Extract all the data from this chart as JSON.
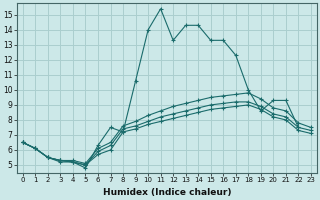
{
  "xlabel": "Humidex (Indice chaleur)",
  "ylabel": "",
  "xlim": [
    -0.5,
    23.5
  ],
  "ylim": [
    4.5,
    15.8
  ],
  "xticks": [
    0,
    1,
    2,
    3,
    4,
    5,
    6,
    7,
    8,
    9,
    10,
    11,
    12,
    13,
    14,
    15,
    16,
    17,
    18,
    19,
    20,
    21,
    22,
    23
  ],
  "yticks": [
    5,
    6,
    7,
    8,
    9,
    10,
    11,
    12,
    13,
    14,
    15
  ],
  "background_color": "#cce8e8",
  "grid_color": "#aacece",
  "line_color": "#1a6b6b",
  "line1_x": [
    0,
    1,
    2,
    3,
    4,
    5,
    6,
    7,
    8,
    9,
    10,
    11,
    12,
    13,
    14,
    15,
    16,
    17,
    18,
    19,
    20,
    21,
    22
  ],
  "line1_y": [
    6.5,
    6.1,
    5.5,
    5.3,
    5.2,
    4.8,
    6.3,
    7.5,
    7.2,
    10.6,
    14.0,
    15.4,
    13.3,
    14.3,
    14.3,
    13.3,
    13.3,
    12.3,
    10.0,
    8.6,
    9.3,
    9.3,
    7.5
  ],
  "line2_x": [
    0,
    1,
    2,
    3,
    4,
    5,
    6,
    7,
    8,
    9,
    10,
    11,
    12,
    13,
    14,
    15,
    16,
    17,
    18,
    19,
    20,
    21,
    22,
    23
  ],
  "line2_y": [
    6.5,
    6.1,
    5.5,
    5.3,
    5.3,
    5.1,
    6.1,
    6.5,
    7.6,
    7.9,
    8.3,
    8.6,
    8.9,
    9.1,
    9.3,
    9.5,
    9.6,
    9.7,
    9.8,
    9.4,
    8.8,
    8.6,
    7.8,
    7.5
  ],
  "line3_x": [
    0,
    1,
    2,
    3,
    4,
    5,
    6,
    7,
    8,
    9,
    10,
    11,
    12,
    13,
    14,
    15,
    16,
    17,
    18,
    19,
    20,
    21,
    22,
    23
  ],
  "line3_y": [
    6.5,
    6.1,
    5.5,
    5.3,
    5.2,
    5.0,
    5.9,
    6.3,
    7.4,
    7.6,
    7.9,
    8.2,
    8.4,
    8.6,
    8.8,
    9.0,
    9.1,
    9.2,
    9.2,
    8.9,
    8.4,
    8.2,
    7.5,
    7.3
  ],
  "line4_x": [
    0,
    1,
    2,
    3,
    4,
    5,
    6,
    7,
    8,
    9,
    10,
    11,
    12,
    13,
    14,
    15,
    16,
    17,
    18,
    19,
    20,
    21,
    22,
    23
  ],
  "line4_y": [
    6.5,
    6.1,
    5.5,
    5.2,
    5.2,
    5.0,
    5.7,
    6.0,
    7.2,
    7.4,
    7.7,
    7.9,
    8.1,
    8.3,
    8.5,
    8.7,
    8.8,
    8.9,
    9.0,
    8.7,
    8.2,
    8.0,
    7.3,
    7.1
  ]
}
